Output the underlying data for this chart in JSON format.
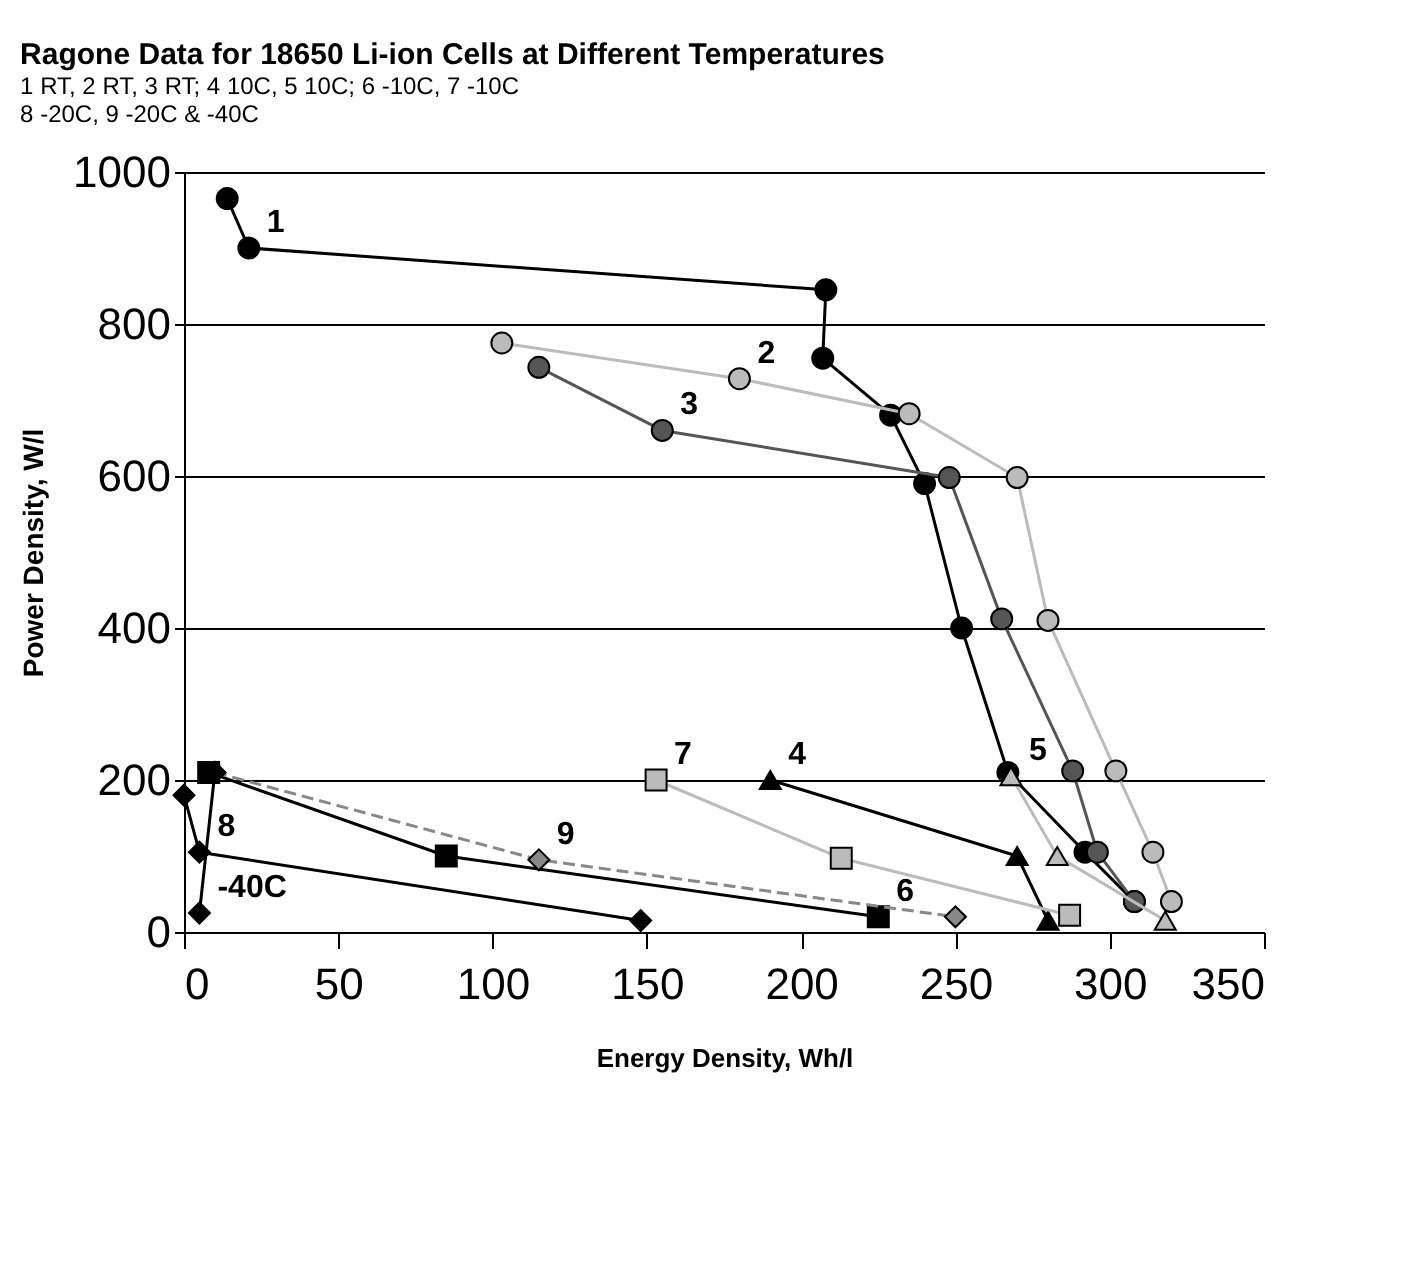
{
  "chart_data": {
    "type": "line",
    "title": "Ragone Data for 18650 Li-ion Cells at Different Temperatures",
    "subtitle": [
      "1 RT, 2 RT, 3 RT; 4 10C, 5 10C; 6 -10C, 7 -10C",
      "8 -20C, 9 -20C & -40C"
    ],
    "xlabel": "Energy Density, Wh/l",
    "ylabel": "Power Density, W/l",
    "xlim": [
      0,
      350
    ],
    "xticks": [
      0,
      50,
      100,
      150,
      200,
      250,
      300,
      350
    ],
    "ylim": [
      0,
      1000
    ],
    "yticks": [
      0,
      200,
      400,
      600,
      800,
      1000
    ],
    "grid": "y",
    "series": [
      {
        "color": "#000000",
        "marker": "circle",
        "x": [
          14,
          21,
          208,
          207,
          229,
          240,
          252,
          267,
          292,
          308
        ],
        "values": [
          965,
          900,
          845,
          755,
          680,
          590,
          400,
          210,
          105,
          40
        ]
      },
      {
        "color": "#bbbbbb",
        "marker": "circle",
        "x": [
          103,
          180,
          235,
          270,
          280,
          302,
          314,
          320
        ],
        "values": [
          775,
          728,
          682,
          598,
          410,
          212,
          105,
          40
        ]
      },
      {
        "color": "#555555",
        "marker": "circle",
        "x": [
          115,
          155,
          248,
          265,
          288,
          296,
          308
        ],
        "values": [
          743,
          660,
          598,
          412,
          212,
          105,
          40
        ]
      },
      {
        "color": "#000000",
        "marker": "triangle",
        "x": [
          190,
          270,
          280
        ],
        "values": [
          200,
          100,
          15
        ]
      },
      {
        "color": "#bbbbbb",
        "marker": "triangle",
        "x": [
          268,
          283,
          318
        ],
        "values": [
          205,
          100,
          15
        ]
      },
      {
        "color": "#000000",
        "marker": "square",
        "x": [
          8,
          85,
          225
        ],
        "values": [
          210,
          100,
          20
        ]
      },
      {
        "color": "#bbbbbb",
        "marker": "square",
        "x": [
          153,
          213,
          287
        ],
        "values": [
          200,
          97,
          22
        ]
      },
      {
        "color": "#000000",
        "marker": "diamond",
        "x": [
          0,
          5,
          148
        ],
        "values": [
          180,
          105,
          15
        ]
      },
      {
        "color": "#888888",
        "marker": "diamond",
        "line_style": "dashed",
        "x": [
          10,
          115,
          250
        ],
        "values": [
          210,
          95,
          20
        ]
      },
      {
        "color": "#000000",
        "marker": "diamond",
        "x": [
          5,
          10
        ],
        "values": [
          25,
          210
        ]
      }
    ],
    "annotations": [
      {
        "text": "1",
        "x": 21,
        "y": 900
      },
      {
        "text": "2",
        "x": 180,
        "y": 728
      },
      {
        "text": "3",
        "x": 155,
        "y": 660
      },
      {
        "text": "4",
        "x": 190,
        "y": 200
      },
      {
        "text": "5",
        "x": 268,
        "y": 205
      },
      {
        "text": "6",
        "x": 225,
        "y": 20
      },
      {
        "text": "7",
        "x": 153,
        "y": 200
      },
      {
        "text": "8",
        "x": 5,
        "y": 105
      },
      {
        "text": "9",
        "x": 115,
        "y": 95
      },
      {
        "text": "-40C",
        "x": 5,
        "y": 25
      }
    ]
  }
}
